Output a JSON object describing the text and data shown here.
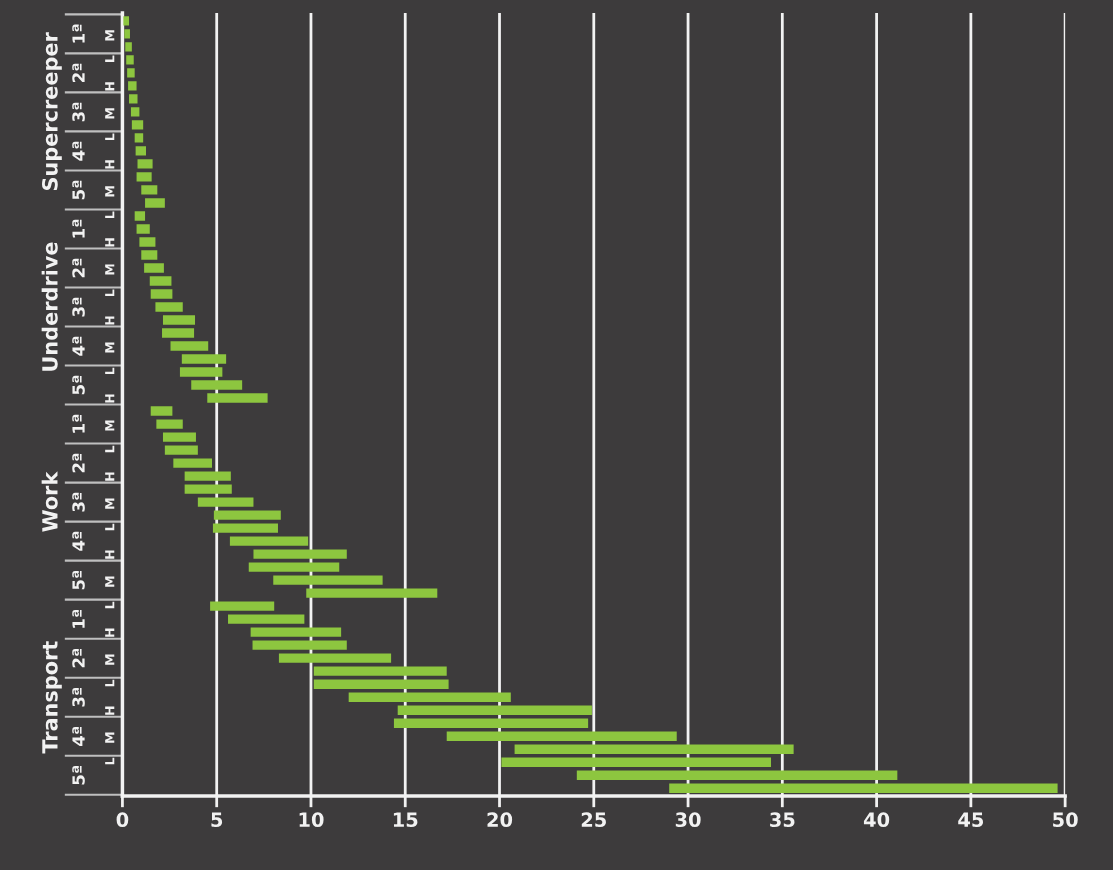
{
  "chart_data": {
    "type": "bar",
    "orientation": "horizontal",
    "categories": [
      null,
      "M",
      null,
      "L",
      null,
      "H",
      null,
      "M",
      null,
      "L",
      null,
      "H",
      null,
      "M",
      null,
      "L",
      null,
      "H",
      null,
      "M",
      null,
      "L",
      null,
      "H",
      null,
      "M",
      null,
      "L",
      null,
      "H",
      null,
      "M",
      null,
      "L",
      null,
      "H",
      null,
      "M",
      null,
      "L",
      null,
      "H",
      null,
      "M",
      null,
      "L",
      null,
      "H",
      null,
      "M",
      null,
      "L",
      null,
      "H",
      null,
      "M",
      null,
      "L",
      null,
      null
    ],
    "base": [
      0.05,
      0.1,
      0.15,
      0.2,
      0.25,
      0.3,
      0.35,
      0.45,
      0.5,
      0.65,
      0.7,
      0.8,
      0.75,
      1.0,
      1.2,
      0.65,
      0.75,
      0.9,
      1.0,
      1.15,
      1.45,
      1.5,
      1.75,
      2.15,
      2.1,
      2.55,
      3.15,
      3.05,
      3.65,
      4.5,
      1.5,
      1.8,
      2.15,
      2.25,
      2.7,
      3.3,
      3.3,
      4.0,
      4.85,
      4.8,
      5.7,
      6.95,
      6.7,
      8.0,
      9.75,
      4.65,
      5.6,
      6.8,
      6.9,
      8.3,
      10.15,
      10.15,
      12.0,
      14.6,
      14.4,
      17.2,
      20.8,
      20.1,
      24.1,
      29.0
    ],
    "values": [
      0.3,
      0.3,
      0.35,
      0.4,
      0.4,
      0.45,
      0.45,
      0.45,
      0.6,
      0.45,
      0.55,
      0.8,
      0.8,
      0.85,
      1.05,
      0.55,
      0.7,
      0.85,
      0.85,
      1.05,
      1.15,
      1.15,
      1.45,
      1.7,
      1.7,
      2.0,
      2.35,
      2.25,
      2.7,
      3.2,
      1.15,
      1.4,
      1.75,
      1.75,
      2.05,
      2.45,
      2.5,
      2.95,
      3.55,
      3.45,
      4.15,
      4.95,
      4.8,
      5.8,
      6.95,
      3.4,
      4.05,
      4.8,
      5.0,
      5.95,
      7.05,
      7.15,
      8.6,
      10.3,
      10.3,
      12.2,
      14.8,
      14.3,
      17.0,
      20.6
    ],
    "color": "#8dc63f",
    "xlim": [
      0,
      50
    ],
    "xticks": [
      0,
      5,
      10,
      15,
      20,
      25,
      30,
      35,
      40,
      45,
      50
    ],
    "grid": "x",
    "legend": false,
    "annotations": [
      "Supercreeper",
      "Underdrive",
      "Work",
      "Transport",
      "1ª",
      "2ª",
      "3ª",
      "4ª",
      "5ª",
      "1ª",
      "2ª",
      "3ª",
      "4ª",
      "5ª",
      "1ª",
      "2ª",
      "3ª",
      "4ª",
      "5ª",
      "1ª",
      "2ª",
      "3ª",
      "4ª",
      "5ª"
    ]
  }
}
